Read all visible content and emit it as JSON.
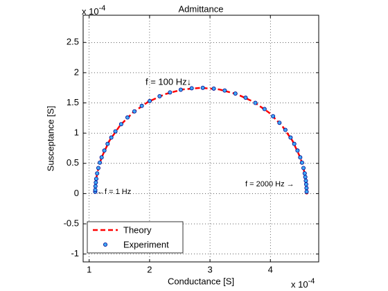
{
  "chart_data": {
    "type": "line-scatter",
    "title": "Admittance",
    "x_label": "Conductance  [S]",
    "y_label": "Susceptance  [S]",
    "x_exponent": {
      "base": "x 10",
      "power": "-4"
    },
    "y_exponent": {
      "base": "x 10",
      "power": "-4"
    },
    "xlim": [
      0.9,
      4.8
    ],
    "ylim": [
      -1.13,
      2.95
    ],
    "xticks": [
      1,
      2,
      3,
      4
    ],
    "yticks": [
      -1,
      -0.5,
      0,
      0.5,
      1,
      1.5,
      2,
      2.5
    ],
    "grid": true,
    "legend_position": "southwest",
    "series": [
      {
        "name": "Theory",
        "kind": "line",
        "color": "#ff0000",
        "x": [
          1.1,
          1.101,
          1.107,
          1.127,
          1.16,
          1.206,
          1.335,
          1.51,
          1.725,
          1.975,
          2.252,
          2.546,
          2.85,
          3.154,
          3.449,
          3.725,
          3.975,
          4.191,
          4.365,
          4.494,
          4.54,
          4.573,
          4.593,
          4.599,
          4.6,
          4.6
        ],
        "y": [
          0,
          0.061,
          0.153,
          0.304,
          0.453,
          0.599,
          0.875,
          1.125,
          1.341,
          1.516,
          1.644,
          1.723,
          1.75,
          1.723,
          1.644,
          1.516,
          1.341,
          1.125,
          0.875,
          0.599,
          0.453,
          0.304,
          0.153,
          0.061,
          0,
          -0.02
        ]
      },
      {
        "name": "Experiment",
        "kind": "scatter",
        "color": "#3fa9f5",
        "edge_color": "#00008b",
        "x": [
          1.1,
          1.101,
          1.104,
          1.11,
          1.117,
          1.132,
          1.152,
          1.176,
          1.206,
          1.251,
          1.305,
          1.366,
          1.434,
          1.529,
          1.634,
          1.749,
          1.871,
          2.002,
          2.166,
          2.338,
          2.516,
          2.697,
          2.881,
          3.063,
          3.244,
          3.42,
          3.59,
          3.751,
          3.903,
          4.044,
          4.15,
          4.248,
          4.334,
          4.395,
          4.449,
          4.494,
          4.524,
          4.548,
          4.568,
          4.578,
          4.587,
          4.593,
          4.598,
          4.6
        ],
        "y": [
          0.031,
          0.061,
          0.122,
          0.183,
          0.244,
          0.334,
          0.423,
          0.512,
          0.599,
          0.712,
          0.822,
          0.927,
          1.029,
          1.148,
          1.259,
          1.36,
          1.451,
          1.531,
          1.611,
          1.674,
          1.718,
          1.743,
          1.75,
          1.737,
          1.705,
          1.655,
          1.586,
          1.5,
          1.398,
          1.28,
          1.171,
          1.053,
          0.927,
          0.822,
          0.712,
          0.599,
          0.512,
          0.423,
          0.334,
          0.274,
          0.213,
          0.153,
          0.092,
          0.031
        ]
      }
    ],
    "annotations": [
      "f = 100 Hz↓",
      "←f = 1 Hz",
      "f = 2000 Hz →"
    ]
  }
}
